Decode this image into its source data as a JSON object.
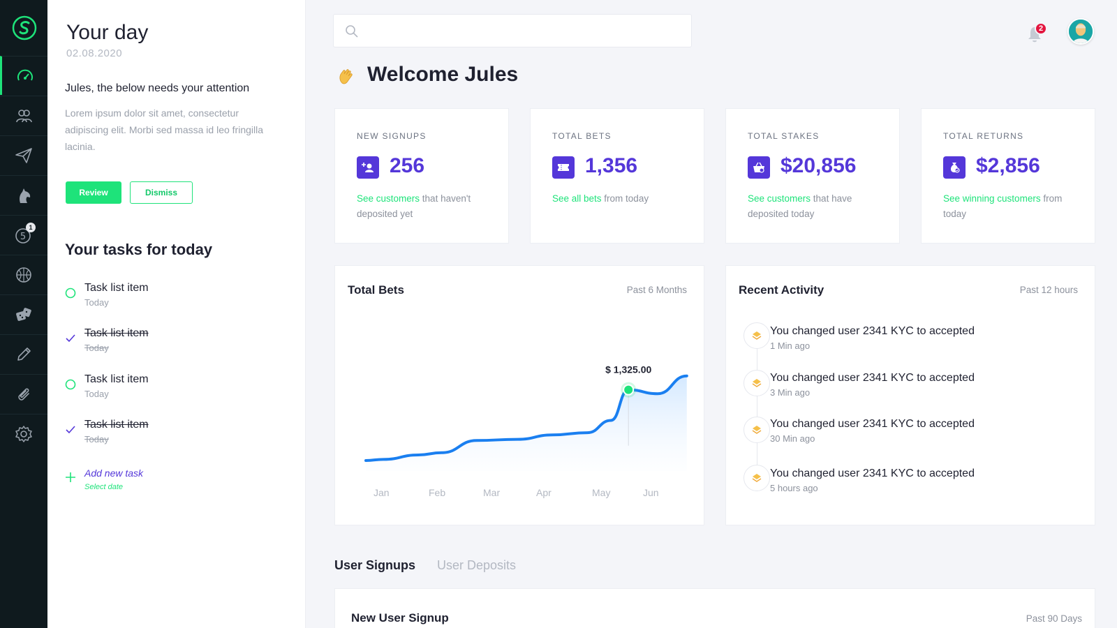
{
  "colors": {
    "accent": "#1ee37a",
    "brand": "#5437d9",
    "rail": "#0f1a1e",
    "alert": "#e3153f"
  },
  "rail": {
    "items": [
      {
        "icon": "speedometer-icon",
        "active": true
      },
      {
        "icon": "users-icon"
      },
      {
        "icon": "paper-plane-icon"
      },
      {
        "icon": "horse-icon"
      },
      {
        "icon": "number-five-icon",
        "badge": "1"
      },
      {
        "icon": "basketball-icon"
      },
      {
        "icon": "dice-icon"
      },
      {
        "icon": "pencil-icon"
      },
      {
        "icon": "paperclip-icon"
      },
      {
        "icon": "gear-icon"
      }
    ]
  },
  "day": {
    "title": "Your day",
    "date": "02.08.2020",
    "attention": "Jules, the below needs your attention",
    "lorem": "Lorem ipsum dolor sit amet, consectetur adipiscing elit. Morbi sed massa id leo fringilla lacinia.",
    "review_label": "Review",
    "dismiss_label": "Dismiss",
    "tasks_title": "Your tasks for today",
    "tasks": [
      {
        "label": "Task list item",
        "sub": "Today",
        "done": false
      },
      {
        "label": "Task list item",
        "sub": "Today",
        "done": true
      },
      {
        "label": "Task list item",
        "sub": "Today",
        "done": false
      },
      {
        "label": "Task list item",
        "sub": "Today",
        "done": true
      }
    ],
    "add_task": "Add new task",
    "select_date": "Select date"
  },
  "header": {
    "search_placeholder": "",
    "notifications_count": "2",
    "welcome": "Welcome Jules"
  },
  "stats": [
    {
      "label": "NEW SIGNUPS",
      "value": "256",
      "icon": "add-user-icon",
      "link": "See customers",
      "rest": " that haven't deposited yet"
    },
    {
      "label": "TOTAL BETS",
      "value": "1,356",
      "icon": "ticket-icon",
      "link": "See all bets",
      "rest": " from today"
    },
    {
      "label": "TOTAL STAKES",
      "value": "$20,856",
      "icon": "basket-icon",
      "link": "See customers",
      "rest": " that have deposited today"
    },
    {
      "label": "TOTAL RETURNS",
      "value": "$2,856",
      "icon": "money-bag-icon",
      "link": "See winning customers",
      "rest": " from today"
    }
  ],
  "chart_card": {
    "title": "Total Bets",
    "range": "Past 6 Months",
    "tooltip": "$ 1,325.00"
  },
  "chart_data": {
    "type": "area",
    "title": "Total Bets",
    "categories": [
      "Jan",
      "Feb",
      "Mar",
      "Apr",
      "May",
      "Jun"
    ],
    "x": [
      0,
      0.3,
      0.9,
      1.3,
      1.9,
      2.6,
      3.2,
      3.8,
      4.2,
      4.5,
      5.0,
      5.5
    ],
    "values": [
      690,
      700,
      740,
      760,
      870,
      880,
      920,
      940,
      1050,
      1325,
      1290,
      1450
    ],
    "ylim": [
      0,
      2000
    ],
    "highlight": {
      "category": "May",
      "value": 1325
    },
    "grid": false,
    "legend": "none"
  },
  "activity": {
    "title": "Recent Activity",
    "range": "Past 12 hours",
    "items": [
      {
        "text": "You changed user 2341 KYC to accepted",
        "time": "1 Min ago"
      },
      {
        "text": "You changed user 2341 KYC to accepted",
        "time": "3 Min ago"
      },
      {
        "text": "You changed user 2341 KYC to accepted",
        "time": "30 Min ago"
      },
      {
        "text": "You changed user 2341 KYC to accepted",
        "time": "5 hours ago"
      }
    ]
  },
  "tabs": [
    {
      "label": "User Signups",
      "active": true
    },
    {
      "label": "User Deposits",
      "active": false
    }
  ],
  "signup_card": {
    "title": "New User Signup",
    "range": "Past 90 Days"
  }
}
